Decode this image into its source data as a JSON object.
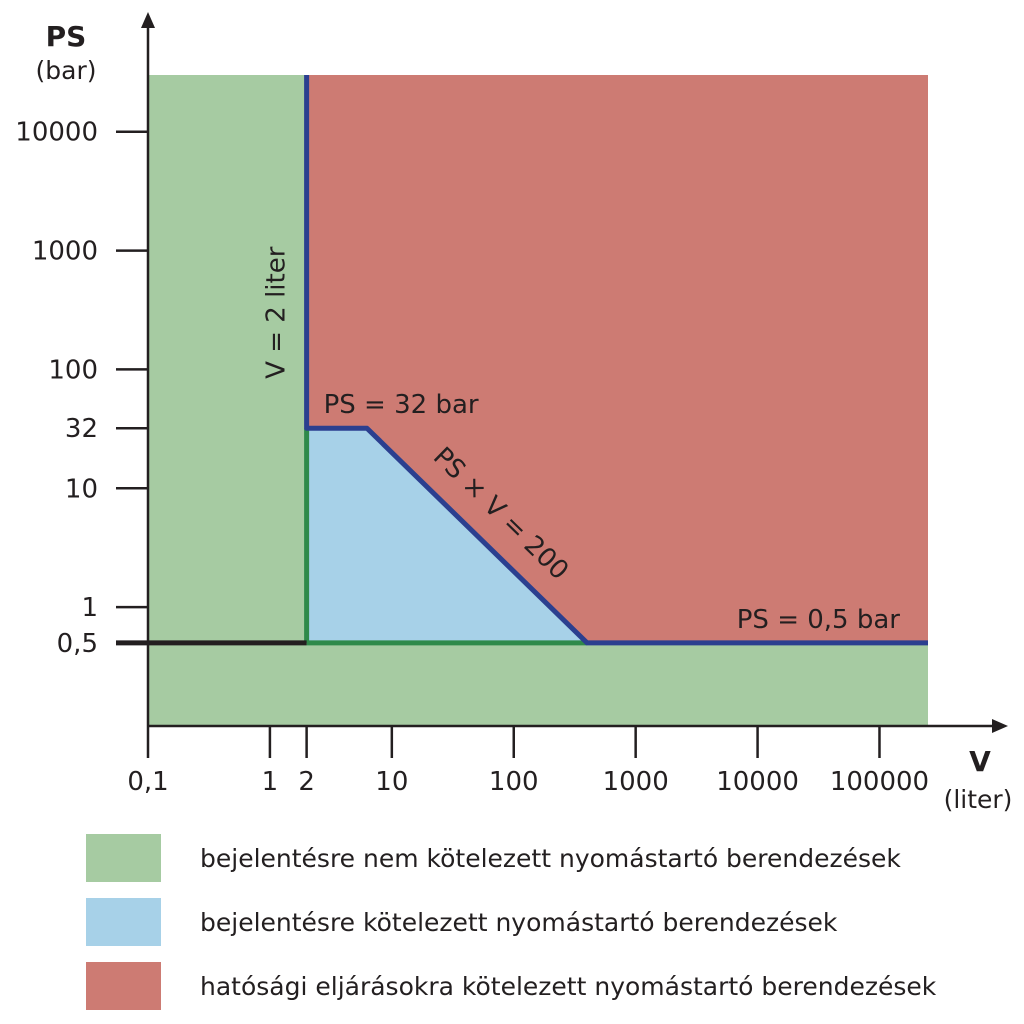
{
  "chart_data": {
    "type": "area",
    "title": "",
    "x_axis": {
      "label": "V",
      "unit": "(liter)",
      "scale": "log",
      "range": [
        0.1,
        250000
      ],
      "ticks": [
        0.1,
        1,
        2,
        10,
        100,
        1000,
        10000,
        100000
      ],
      "tick_labels": [
        "0,1",
        "1",
        "2",
        "10",
        "100",
        "1000",
        "10000",
        "100000"
      ]
    },
    "y_axis": {
      "label": "PS",
      "unit": "(bar)",
      "scale": "log",
      "range": [
        0.1,
        30000
      ],
      "ticks": [
        0.5,
        1,
        10,
        32,
        100,
        1000,
        10000
      ],
      "tick_labels": [
        "0,5",
        "1",
        "10",
        "32",
        "100",
        "1000",
        "10000"
      ]
    },
    "regions": [
      {
        "key": "green",
        "label": "bejelentésre nem kötelezett nyomástartó berendezések",
        "color": "#a6cba2"
      },
      {
        "key": "blue",
        "label": "bejelentésre kötelezett nyomástartó berendezések",
        "color": "#a7d1e8"
      },
      {
        "key": "red",
        "label": "hatósági eljárásokra kötelezett nyomástartó berendezések",
        "color": "#cd7b73"
      }
    ],
    "boundaries": {
      "V_equals_2": {
        "V": 2,
        "label": "V = 2 liter"
      },
      "PS_equals_32": {
        "PS": 32,
        "V_from": 2,
        "V_to": 6.25,
        "label": "PS = 32 bar"
      },
      "PS_times_V_equals_200": {
        "product": 200,
        "V_from": 6.25,
        "V_to": 400,
        "label": "PS × V = 200"
      },
      "PS_equals_0_5": {
        "PS": 0.5,
        "V_from": 400,
        "label": "PS = 0,5 bar"
      }
    },
    "colors": {
      "boundary": "#2b3f8f",
      "green_edge": "#2e8a4a",
      "axis": "#231f20"
    },
    "grid": false,
    "legend_position": "bottom"
  }
}
